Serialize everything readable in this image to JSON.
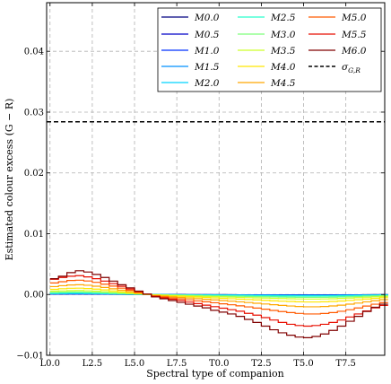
{
  "chart_data": {
    "type": "line",
    "style": "step",
    "title": "",
    "xlabel": "Spectral type of companion",
    "ylabel": "Estimated colour excess (G − R)",
    "xlim": [
      -0.2,
      19.8
    ],
    "ylim": [
      -0.01,
      0.048
    ],
    "xticks": [
      0,
      2.5,
      5,
      7.5,
      10,
      12.5,
      15,
      17.5
    ],
    "xtick_labels": [
      "L0.0",
      "L2.5",
      "L5.0",
      "L7.5",
      "T0.0",
      "T2.5",
      "T5.0",
      "T7.5"
    ],
    "yticks": [
      -0.01,
      0.0,
      0.01,
      0.02,
      0.03,
      0.04
    ],
    "ytick_labels": [
      "−0.01",
      "0.00",
      "0.01",
      "0.02",
      "0.03",
      "0.04"
    ],
    "grid": true,
    "legend_position": "top-right",
    "legend_columns": 3,
    "x": [
      0,
      0.5,
      1,
      1.5,
      2,
      2.5,
      3,
      3.5,
      4,
      4.5,
      5,
      5.5,
      6,
      6.5,
      7,
      7.5,
      8,
      8.5,
      9,
      9.5,
      10,
      10.5,
      11,
      11.5,
      12,
      12.5,
      13,
      13.5,
      14,
      14.5,
      15,
      15.5,
      16,
      16.5,
      17,
      17.5,
      18,
      18.5,
      19,
      19.5
    ],
    "series": [
      {
        "name": "M0.0",
        "color": "#000080",
        "values": [
          6e-05,
          7e-05,
          8e-05,
          8e-05,
          7e-05,
          6e-05,
          5e-05,
          4e-05,
          3e-05,
          2e-05,
          1e-05,
          0,
          -1e-05,
          -1e-05,
          -2e-05,
          -2e-05,
          -3e-05,
          -3e-05,
          -3e-05,
          -4e-05,
          -4e-05,
          -4e-05,
          -5e-05,
          -5e-05,
          -5e-05,
          -6e-05,
          -6e-05,
          -6e-05,
          -7e-05,
          -7e-05,
          -7e-05,
          -7e-05,
          -7e-05,
          -6e-05,
          -6e-05,
          -5e-05,
          -5e-05,
          -4e-05,
          -4e-05,
          -3e-05
        ]
      },
      {
        "name": "M0.5",
        "color": "#0000c8",
        "values": [
          7e-05,
          8e-05,
          9e-05,
          9e-05,
          8e-05,
          7e-05,
          6e-05,
          5e-05,
          4e-05,
          3e-05,
          1e-05,
          0,
          -1e-05,
          -1e-05,
          -2e-05,
          -2e-05,
          -3e-05,
          -3e-05,
          -4e-05,
          -4e-05,
          -4e-05,
          -5e-05,
          -5e-05,
          -5e-05,
          -6e-05,
          -6e-05,
          -7e-05,
          -7e-05,
          -7e-05,
          -8e-05,
          -8e-05,
          -8e-05,
          -8e-05,
          -7e-05,
          -7e-05,
          -6e-05,
          -6e-05,
          -5e-05,
          -4e-05,
          -4e-05
        ]
      },
      {
        "name": "M1.0",
        "color": "#0030ff",
        "values": [
          9e-05,
          0.0001,
          0.00011,
          0.00011,
          0.0001,
          9e-05,
          8e-05,
          6e-05,
          5e-05,
          3e-05,
          2e-05,
          0,
          -1e-05,
          -2e-05,
          -2e-05,
          -3e-05,
          -3e-05,
          -4e-05,
          -4e-05,
          -5e-05,
          -5e-05,
          -6e-05,
          -6e-05,
          -7e-05,
          -7e-05,
          -8e-05,
          -8e-05,
          -9e-05,
          -9e-05,
          -0.0001,
          -0.0001,
          -0.0001,
          -0.0001,
          -9e-05,
          -9e-05,
          -8e-05,
          -7e-05,
          -6e-05,
          -5e-05,
          -4e-05
        ]
      },
      {
        "name": "M1.5",
        "color": "#0090ff",
        "values": [
          0.00012,
          0.00013,
          0.00014,
          0.00014,
          0.00013,
          0.00012,
          0.0001,
          8e-05,
          6e-05,
          4e-05,
          2e-05,
          0,
          -1e-05,
          -2e-05,
          -3e-05,
          -4e-05,
          -4e-05,
          -5e-05,
          -6e-05,
          -6e-05,
          -7e-05,
          -8e-05,
          -8e-05,
          -9e-05,
          -0.0001,
          -0.0001,
          -0.00011,
          -0.00012,
          -0.00012,
          -0.00013,
          -0.00013,
          -0.00013,
          -0.00013,
          -0.00012,
          -0.00011,
          -0.0001,
          -9e-05,
          -8e-05,
          -7e-05,
          -6e-05
        ]
      },
      {
        "name": "M2.0",
        "color": "#00d4ff",
        "values": [
          0.00016,
          0.00018,
          0.00019,
          0.00019,
          0.00018,
          0.00016,
          0.00013,
          0.00011,
          8e-05,
          5e-05,
          3e-05,
          0,
          -2e-05,
          -3e-05,
          -4e-05,
          -5e-05,
          -6e-05,
          -7e-05,
          -8e-05,
          -9e-05,
          -0.0001,
          -0.00011,
          -0.00012,
          -0.00013,
          -0.00014,
          -0.00015,
          -0.00016,
          -0.00017,
          -0.00018,
          -0.00018,
          -0.00019,
          -0.00019,
          -0.00019,
          -0.00018,
          -0.00017,
          -0.00015,
          -0.00014,
          -0.00012,
          -0.0001,
          -8e-05
        ]
      },
      {
        "name": "M2.5",
        "color": "#29ffce",
        "values": [
          0.00022,
          0.00025,
          0.00027,
          0.00027,
          0.00025,
          0.00022,
          0.00019,
          0.00015,
          0.00011,
          7e-05,
          4e-05,
          0,
          -3e-05,
          -4e-05,
          -6e-05,
          -7e-05,
          -9e-05,
          -0.0001,
          -0.00012,
          -0.00013,
          -0.00015,
          -0.00016,
          -0.00018,
          -0.00019,
          -0.00021,
          -0.00022,
          -0.00024,
          -0.00025,
          -0.00026,
          -0.00027,
          -0.00028,
          -0.00028,
          -0.00027,
          -0.00026,
          -0.00024,
          -0.00022,
          -0.0002,
          -0.00017,
          -0.00014,
          -0.00012
        ]
      },
      {
        "name": "M3.0",
        "color": "#7dff7a",
        "values": [
          0.00035,
          0.00039,
          0.00042,
          0.00042,
          0.00039,
          0.00035,
          0.0003,
          0.00024,
          0.00018,
          0.00012,
          6e-05,
          1e-05,
          -4e-05,
          -7e-05,
          -0.0001,
          -0.00012,
          -0.00015,
          -0.00017,
          -0.0002,
          -0.00022,
          -0.00025,
          -0.00027,
          -0.0003,
          -0.00032,
          -0.00035,
          -0.00037,
          -0.0004,
          -0.00042,
          -0.00044,
          -0.00046,
          -0.00047,
          -0.00047,
          -0.00046,
          -0.00044,
          -0.00041,
          -0.00037,
          -0.00033,
          -0.00028,
          -0.00024,
          -0.0002
        ]
      },
      {
        "name": "M3.5",
        "color": "#ceff29",
        "values": [
          0.00055,
          0.0006,
          0.00065,
          0.00066,
          0.00062,
          0.00055,
          0.00047,
          0.00038,
          0.00029,
          0.0002,
          0.0001,
          1e-05,
          -6e-05,
          -0.00011,
          -0.00015,
          -0.00019,
          -0.00023,
          -0.00027,
          -0.00031,
          -0.00035,
          -0.00039,
          -0.00043,
          -0.00047,
          -0.00051,
          -0.00055,
          -0.00059,
          -0.00063,
          -0.00067,
          -0.0007,
          -0.00073,
          -0.00075,
          -0.00075,
          -0.00073,
          -0.0007,
          -0.00065,
          -0.00059,
          -0.00052,
          -0.00045,
          -0.00038,
          -0.00032
        ]
      },
      {
        "name": "M4.0",
        "color": "#ffe600",
        "values": [
          0.00085,
          0.00095,
          0.00102,
          0.00104,
          0.00098,
          0.00088,
          0.00075,
          0.0006,
          0.00045,
          0.0003,
          0.00016,
          2e-05,
          -0.0001,
          -0.00017,
          -0.00024,
          -0.0003,
          -0.00037,
          -0.00043,
          -0.0005,
          -0.00056,
          -0.00063,
          -0.00069,
          -0.00076,
          -0.00082,
          -0.00089,
          -0.00096,
          -0.00103,
          -0.0011,
          -0.00115,
          -0.0012,
          -0.00123,
          -0.00123,
          -0.0012,
          -0.00115,
          -0.00107,
          -0.00097,
          -0.00086,
          -0.00074,
          -0.00063,
          -0.00052
        ]
      },
      {
        "name": "M4.5",
        "color": "#ffa700",
        "values": [
          0.0013,
          0.00145,
          0.00157,
          0.0016,
          0.00152,
          0.00136,
          0.00116,
          0.00094,
          0.0007,
          0.00047,
          0.00025,
          3e-05,
          -0.00016,
          -0.00027,
          -0.00038,
          -0.00048,
          -0.00058,
          -0.00068,
          -0.00079,
          -0.00089,
          -0.001,
          -0.0011,
          -0.00121,
          -0.00132,
          -0.00144,
          -0.00156,
          -0.00168,
          -0.00179,
          -0.00189,
          -0.00197,
          -0.00202,
          -0.00202,
          -0.00197,
          -0.00188,
          -0.00175,
          -0.00159,
          -0.00141,
          -0.00121,
          -0.00102,
          -0.00085
        ]
      },
      {
        "name": "M5.0",
        "color": "#ff5a00",
        "values": [
          0.0019,
          0.0021,
          0.0023,
          0.00235,
          0.00222,
          0.002,
          0.0017,
          0.00138,
          0.00104,
          0.0007,
          0.00037,
          5e-05,
          -0.00024,
          -0.00041,
          -0.00057,
          -0.00072,
          -0.00088,
          -0.00104,
          -0.0012,
          -0.00136,
          -0.00153,
          -0.00169,
          -0.00186,
          -0.00204,
          -0.00223,
          -0.00242,
          -0.00262,
          -0.00281,
          -0.00297,
          -0.00311,
          -0.0032,
          -0.0032,
          -0.00312,
          -0.00297,
          -0.00276,
          -0.0025,
          -0.00221,
          -0.0019,
          -0.0016,
          -0.00133
        ]
      },
      {
        "name": "M5.5",
        "color": "#e80e00",
        "values": [
          0.0025,
          0.0028,
          0.003,
          0.0031,
          0.0029,
          0.0026,
          0.0022,
          0.0018,
          0.00135,
          0.0009,
          0.00048,
          6e-05,
          -0.00031,
          -0.00055,
          -0.00078,
          -0.001,
          -0.00125,
          -0.0015,
          -0.00175,
          -0.002,
          -0.00225,
          -0.0025,
          -0.00275,
          -0.0031,
          -0.0034,
          -0.0038,
          -0.0042,
          -0.0046,
          -0.0049,
          -0.0051,
          -0.0052,
          -0.0051,
          -0.0049,
          -0.0046,
          -0.0042,
          -0.0037,
          -0.0032,
          -0.0027,
          -0.0022,
          -0.0018
        ]
      },
      {
        "name": "M6.0",
        "color": "#800000",
        "values": [
          0.0026,
          0.003,
          0.0036,
          0.0039,
          0.0037,
          0.0033,
          0.0028,
          0.0022,
          0.0016,
          0.0011,
          0.00055,
          5e-05,
          -0.0004,
          -0.0007,
          -0.001,
          -0.0013,
          -0.0016,
          -0.0019,
          -0.0022,
          -0.0026,
          -0.0029,
          -0.0032,
          -0.0036,
          -0.0041,
          -0.0046,
          -0.0052,
          -0.0058,
          -0.0063,
          -0.0067,
          -0.007,
          -0.0071,
          -0.0069,
          -0.0065,
          -0.0059,
          -0.0052,
          -0.0044,
          -0.0036,
          -0.0028,
          -0.0021,
          -0.0016
        ]
      }
    ],
    "reference_line": {
      "name": "σ_G,R",
      "symbol": "σ",
      "subscript": "G,R",
      "y": 0.0284,
      "color": "#000000",
      "style": "dashed"
    }
  }
}
